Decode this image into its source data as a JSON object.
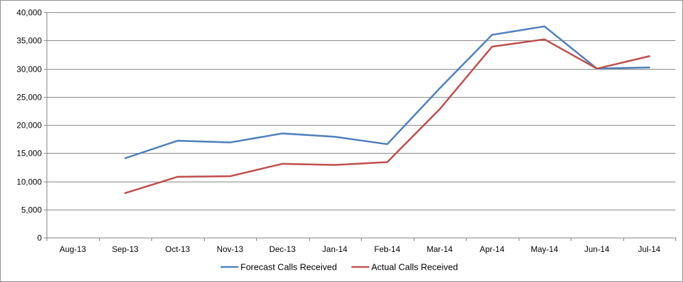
{
  "chart_data": {
    "type": "line",
    "categories": [
      "Aug-13",
      "Sep-13",
      "Oct-13",
      "Nov-13",
      "Dec-13",
      "Jan-14",
      "Feb-14",
      "Mar-14",
      "Apr-14",
      "May-14",
      "Jun-14",
      "Jul-14"
    ],
    "series": [
      {
        "name": "Forecast Calls Received",
        "color": "#4f81bd",
        "values": [
          null,
          14100,
          17200,
          16900,
          18500,
          17900,
          16600,
          26500,
          36000,
          37500,
          30000,
          30200
        ]
      },
      {
        "name": "Actual Calls Received",
        "color": "#c0504d",
        "values": [
          null,
          7900,
          10800,
          10900,
          13100,
          12900,
          13400,
          22800,
          33900,
          35200,
          30000,
          32200
        ]
      }
    ],
    "ylim": [
      0,
      40000
    ],
    "ytick_step": 5000,
    "ytick_labels": [
      "0",
      "5,000",
      "10,000",
      "15,000",
      "20,000",
      "25,000",
      "30,000",
      "35,000",
      "40,000"
    ],
    "grid": true,
    "legend_position": "bottom"
  }
}
